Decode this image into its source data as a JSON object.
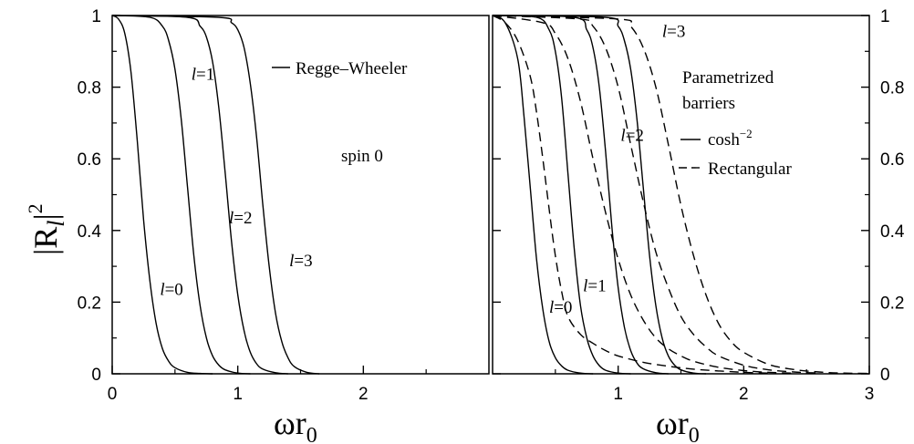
{
  "chart_data": [
    {
      "type": "line",
      "panel": "left",
      "xlim": [
        0,
        3
      ],
      "ylim": [
        0,
        1
      ],
      "x_ticks": [
        "0",
        "1",
        "2"
      ],
      "y_ticks": [
        "0",
        "0.2",
        "0.4",
        "0.6",
        "0.8",
        "1"
      ],
      "xlabel": {
        "main": "ωr",
        "sub": "0"
      },
      "ylabel": {
        "pre": "|R",
        "sub": "l",
        "post": "|",
        "sup": "2"
      },
      "legend": {
        "text": "Regge–Wheeler",
        "style": "solid"
      },
      "annotation": "spin 0",
      "series": [
        {
          "l": "0",
          "style": "solid",
          "x": [
            0,
            0.05,
            0.1,
            0.15,
            0.2,
            0.25,
            0.3,
            0.35,
            0.4,
            0.45,
            0.5,
            0.6,
            0.7,
            0.8
          ],
          "y": [
            1,
            0.99,
            0.95,
            0.84,
            0.65,
            0.43,
            0.26,
            0.14,
            0.07,
            0.035,
            0.017,
            0.004,
            0.001,
            0
          ]
        },
        {
          "l": "1",
          "style": "solid",
          "x": [
            0,
            0.3,
            0.4,
            0.45,
            0.5,
            0.55,
            0.6,
            0.65,
            0.7,
            0.75,
            0.8,
            0.85,
            0.9,
            1.0,
            1.1
          ],
          "y": [
            1,
            0.995,
            0.97,
            0.93,
            0.85,
            0.71,
            0.52,
            0.33,
            0.19,
            0.1,
            0.05,
            0.024,
            0.011,
            0.002,
            0
          ]
        },
        {
          "l": "2",
          "style": "solid",
          "x": [
            0,
            0.6,
            0.7,
            0.75,
            0.8,
            0.85,
            0.9,
            0.95,
            1.0,
            1.05,
            1.1,
            1.15,
            1.2,
            1.3,
            1.4
          ],
          "y": [
            1,
            0.995,
            0.97,
            0.94,
            0.87,
            0.74,
            0.56,
            0.37,
            0.22,
            0.12,
            0.06,
            0.028,
            0.013,
            0.003,
            0
          ]
        },
        {
          "l": "3",
          "style": "solid",
          "x": [
            0,
            0.85,
            0.95,
            1.0,
            1.05,
            1.1,
            1.15,
            1.2,
            1.25,
            1.3,
            1.35,
            1.4,
            1.45,
            1.55,
            1.65
          ],
          "y": [
            1,
            0.995,
            0.98,
            0.96,
            0.91,
            0.81,
            0.66,
            0.47,
            0.3,
            0.17,
            0.09,
            0.045,
            0.02,
            0.004,
            0
          ]
        }
      ],
      "labels": [
        {
          "l": "0",
          "x": 0.38,
          "y": 0.22
        },
        {
          "l": "1",
          "x": 0.63,
          "y": 0.82
        },
        {
          "l": "2",
          "x": 0.93,
          "y": 0.42
        },
        {
          "l": "3",
          "x": 1.41,
          "y": 0.3
        }
      ]
    },
    {
      "type": "line",
      "panel": "right",
      "xlim": [
        0,
        3
      ],
      "ylim": [
        0,
        1
      ],
      "x_ticks": [
        "1",
        "2",
        "3"
      ],
      "y_ticks": [
        "0",
        "0.2",
        "0.4",
        "0.6",
        "0.8",
        "1"
      ],
      "xlabel": {
        "main": "ωr",
        "sub": "0"
      },
      "legend_title": [
        "Parametrized",
        "barriers"
      ],
      "legend": [
        {
          "text": "cosh",
          "sup": "−2",
          "style": "solid"
        },
        {
          "text": "Rectangular",
          "style": "dashed"
        }
      ],
      "series": [
        {
          "name": "cosh",
          "l": "0",
          "style": "solid",
          "x": [
            0,
            0.1,
            0.2,
            0.25,
            0.3,
            0.35,
            0.4,
            0.45,
            0.5,
            0.55,
            0.6,
            0.7,
            0.8
          ],
          "y": [
            1,
            0.98,
            0.88,
            0.72,
            0.52,
            0.32,
            0.18,
            0.09,
            0.045,
            0.022,
            0.01,
            0.002,
            0
          ]
        },
        {
          "name": "cosh",
          "l": "1",
          "style": "solid",
          "x": [
            0,
            0.35,
            0.45,
            0.5,
            0.55,
            0.6,
            0.65,
            0.7,
            0.75,
            0.8,
            0.85,
            0.9,
            1.0,
            1.1
          ],
          "y": [
            1,
            0.995,
            0.96,
            0.9,
            0.77,
            0.56,
            0.35,
            0.19,
            0.1,
            0.05,
            0.023,
            0.01,
            0.002,
            0
          ]
        },
        {
          "name": "cosh",
          "l": "2",
          "style": "solid",
          "x": [
            0,
            0.65,
            0.75,
            0.8,
            0.85,
            0.9,
            0.95,
            1.0,
            1.05,
            1.1,
            1.15,
            1.2,
            1.3,
            1.4
          ],
          "y": [
            1,
            0.995,
            0.96,
            0.91,
            0.8,
            0.62,
            0.41,
            0.24,
            0.13,
            0.065,
            0.03,
            0.014,
            0.003,
            0
          ]
        },
        {
          "name": "cosh",
          "l": "3",
          "style": "solid",
          "x": [
            0,
            0.9,
            1.0,
            1.05,
            1.1,
            1.15,
            1.2,
            1.25,
            1.3,
            1.35,
            1.4,
            1.45,
            1.5,
            1.6,
            1.7
          ],
          "y": [
            1,
            0.995,
            0.97,
            0.93,
            0.85,
            0.71,
            0.52,
            0.33,
            0.19,
            0.1,
            0.05,
            0.024,
            0.011,
            0.002,
            0
          ]
        },
        {
          "name": "Rectangular",
          "l": "0",
          "style": "dashed",
          "x": [
            0,
            0.1,
            0.2,
            0.3,
            0.35,
            0.4,
            0.45,
            0.5,
            0.55,
            0.6,
            0.7,
            0.8,
            0.9,
            1.0,
            1.2,
            1.4,
            1.6,
            1.8,
            2.0,
            2.2
          ],
          "y": [
            1,
            0.98,
            0.93,
            0.83,
            0.73,
            0.6,
            0.46,
            0.33,
            0.23,
            0.16,
            0.11,
            0.085,
            0.065,
            0.05,
            0.032,
            0.021,
            0.013,
            0.008,
            0.004,
            0.002
          ]
        },
        {
          "name": "Rectangular",
          "l": "1",
          "style": "dashed",
          "x": [
            0,
            0.4,
            0.5,
            0.6,
            0.7,
            0.8,
            0.9,
            1.0,
            1.1,
            1.2,
            1.3,
            1.4,
            1.5,
            1.6,
            1.8,
            2.0,
            2.2,
            2.4
          ],
          "y": [
            1,
            0.98,
            0.95,
            0.88,
            0.76,
            0.6,
            0.45,
            0.32,
            0.22,
            0.15,
            0.1,
            0.07,
            0.05,
            0.035,
            0.018,
            0.009,
            0.004,
            0.002
          ]
        },
        {
          "name": "Rectangular",
          "l": "2",
          "style": "dashed",
          "x": [
            0,
            0.7,
            0.8,
            0.9,
            1.0,
            1.1,
            1.2,
            1.3,
            1.4,
            1.5,
            1.6,
            1.7,
            1.8,
            2.0,
            2.2,
            2.4,
            2.6
          ],
          "y": [
            1,
            0.99,
            0.97,
            0.91,
            0.8,
            0.64,
            0.48,
            0.34,
            0.24,
            0.16,
            0.11,
            0.075,
            0.05,
            0.024,
            0.011,
            0.005,
            0.002
          ]
        },
        {
          "name": "Rectangular",
          "l": "3",
          "style": "dashed",
          "x": [
            0,
            1.0,
            1.1,
            1.2,
            1.3,
            1.4,
            1.5,
            1.6,
            1.7,
            1.8,
            1.9,
            2.0,
            2.2,
            2.4,
            2.6,
            2.8,
            3.0
          ],
          "y": [
            1,
            0.99,
            0.97,
            0.91,
            0.8,
            0.64,
            0.47,
            0.33,
            0.22,
            0.14,
            0.09,
            0.06,
            0.026,
            0.012,
            0.005,
            0.002,
            0.001
          ]
        }
      ],
      "labels": [
        {
          "l": "0",
          "x": 0.45,
          "y": 0.17
        },
        {
          "l": "1",
          "x": 0.72,
          "y": 0.23
        },
        {
          "l": "2",
          "x": 1.02,
          "y": 0.65
        },
        {
          "l": "3",
          "x": 1.35,
          "y": 0.94
        }
      ]
    }
  ]
}
